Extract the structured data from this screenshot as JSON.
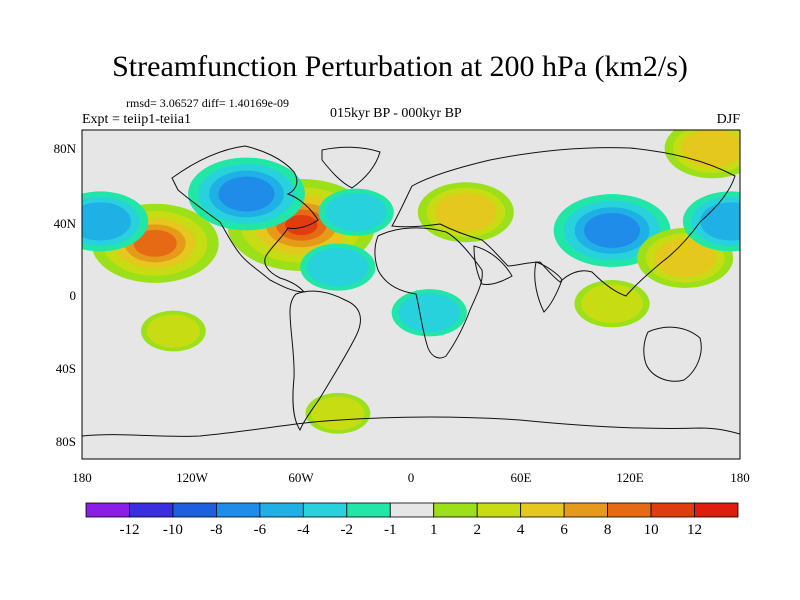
{
  "title": "Streamfunction Perturbation at 200 hPa (km2/s)",
  "stats": "rmsd= 3.06527  diff= 1.40169e-09",
  "experiment": "Expt = teiip1-teiia1",
  "period": "015kyr BP - 000kyr BP",
  "season": "DJF",
  "lat_ticks": [
    "80N",
    "40N",
    "0",
    "40S",
    "80S"
  ],
  "lon_ticks": [
    "180",
    "120W",
    "60W",
    "0",
    "60E",
    "120E",
    "180"
  ],
  "colorbar": {
    "labels": [
      "-12",
      "-10",
      "-8",
      "-6",
      "-4",
      "-2",
      "-1",
      "1",
      "2",
      "4",
      "6",
      "8",
      "10",
      "12"
    ],
    "colors": [
      "#8a1ee6",
      "#3a2ee0",
      "#1d5fe0",
      "#1e8ce8",
      "#1fb0e6",
      "#27d2dc",
      "#22e5a8",
      "#e6e6e6",
      "#9ce01a",
      "#c8dc14",
      "#e4c81e",
      "#e69a1a",
      "#e66a14",
      "#e03c10",
      "#e01c0e"
    ]
  },
  "chart_data": {
    "type": "heatmap",
    "title": "Streamfunction Perturbation at 200 hPa (km2/s)",
    "xlim": [
      -180,
      180
    ],
    "ylim": [
      -90,
      90
    ],
    "levels": [
      -12,
      -10,
      -8,
      -6,
      -4,
      -2,
      -1,
      1,
      2,
      4,
      6,
      8,
      10,
      12
    ],
    "features": [
      {
        "lon": -60,
        "lat": 38,
        "value": 10
      },
      {
        "lon": -140,
        "lat": 28,
        "value": 8
      },
      {
        "lon": -170,
        "lat": 40,
        "value": -5
      },
      {
        "lon": -90,
        "lat": 55,
        "value": -7
      },
      {
        "lon": -30,
        "lat": 45,
        "value": -3
      },
      {
        "lon": 30,
        "lat": 45,
        "value": 5
      },
      {
        "lon": 110,
        "lat": 35,
        "value": -7
      },
      {
        "lon": 150,
        "lat": 20,
        "value": 5
      },
      {
        "lon": 175,
        "lat": 40,
        "value": -5
      },
      {
        "lon": -40,
        "lat": 15,
        "value": -3
      },
      {
        "lon": 10,
        "lat": -10,
        "value": -3
      },
      {
        "lon": 110,
        "lat": -5,
        "value": 3
      },
      {
        "lon": 165,
        "lat": 80,
        "value": 5
      },
      {
        "lon": -130,
        "lat": -20,
        "value": 2
      },
      {
        "lon": -40,
        "lat": -65,
        "value": 2
      }
    ]
  }
}
